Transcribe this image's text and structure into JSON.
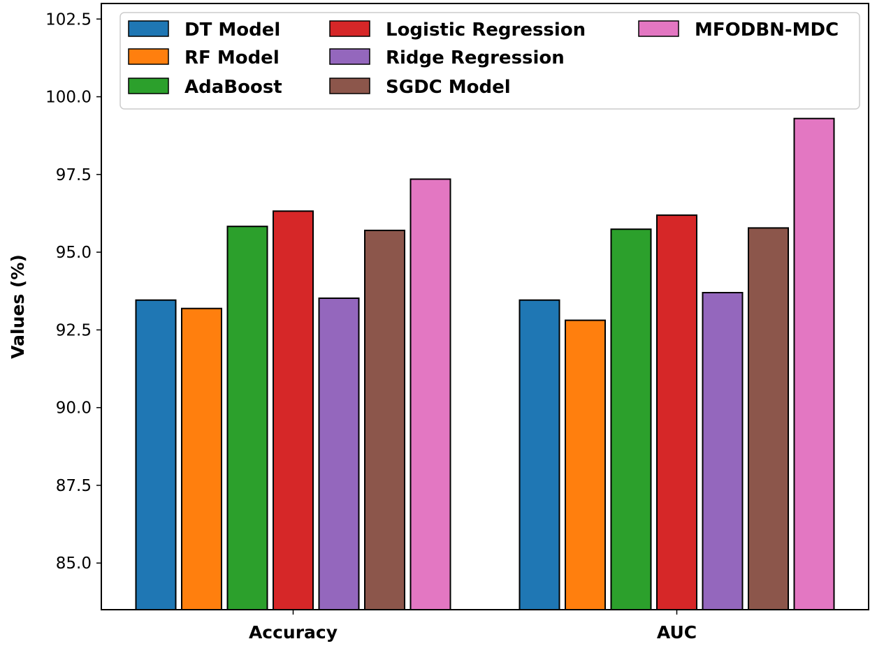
{
  "chart_data": {
    "type": "bar",
    "title": "",
    "xlabel": "",
    "ylabel": "Values (%)",
    "ylim": [
      83.5,
      103.0
    ],
    "yticks": [
      "85.0",
      "87.5",
      "90.0",
      "92.5",
      "95.0",
      "97.5",
      "100.0",
      "102.5"
    ],
    "grid": false,
    "legend_position": "top",
    "categories": [
      "Accuracy",
      "AUC"
    ],
    "series": [
      {
        "name": "DT Model",
        "color": "#1f77b4",
        "values": [
          93.46,
          93.46
        ]
      },
      {
        "name": "RF Model",
        "color": "#ff7f0e",
        "values": [
          93.19,
          92.81
        ]
      },
      {
        "name": "AdaBoost",
        "color": "#2ca02c",
        "values": [
          95.83,
          95.74
        ]
      },
      {
        "name": "Logistic Regression",
        "color": "#d62728",
        "values": [
          96.32,
          96.19
        ]
      },
      {
        "name": "Ridge Regression",
        "color": "#9467bd",
        "values": [
          93.52,
          93.7
        ]
      },
      {
        "name": "SGDC Model",
        "color": "#8c564b",
        "values": [
          95.7,
          95.78
        ]
      },
      {
        "name": "MFODBN-MDC",
        "color": "#e377c2",
        "values": [
          97.35,
          99.3
        ]
      }
    ]
  }
}
